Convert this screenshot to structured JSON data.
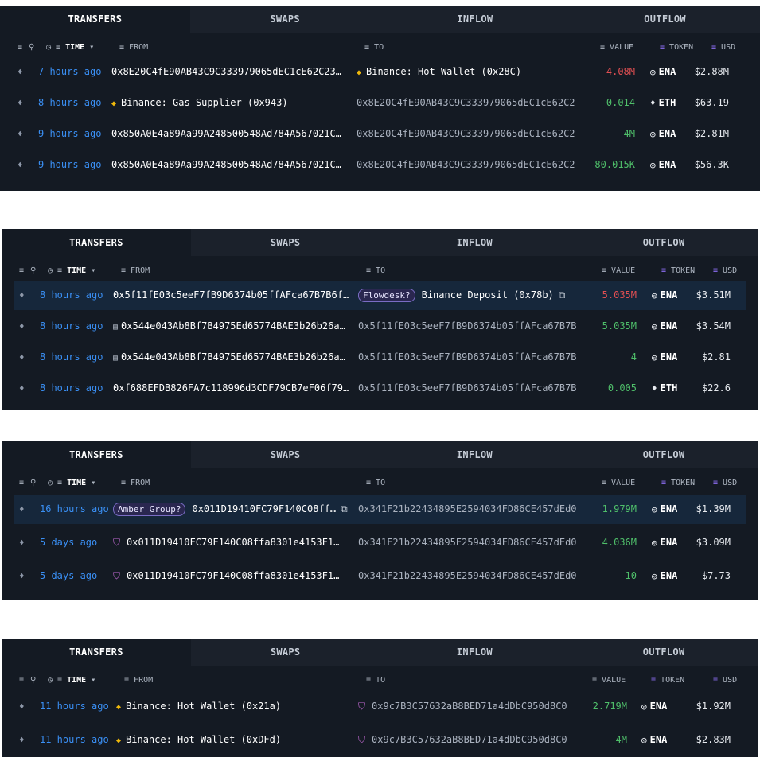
{
  "tabs": [
    "TRANSFERS",
    "SWAPS",
    "INFLOW",
    "OUTFLOW"
  ],
  "headers": {
    "time": "TIME",
    "from": "FROM",
    "to": "TO",
    "value": "VALUE",
    "token": "TOKEN",
    "usd": "USD"
  },
  "header_icons": [
    "filter-icon",
    "link-icon",
    "clock-icon",
    "chevron-down-icon"
  ],
  "panels": [
    {
      "rows": [
        {
          "time": "7 hours ago",
          "from": "0x8E20C4fE90AB43C9C333979065dEC1cE62C23…",
          "to": "Binance: Hot Wallet (0x28C)",
          "to_icon": "binance-icon",
          "value": "4.08M",
          "value_color": "red",
          "token": "ENA",
          "usd": "$2.88M"
        },
        {
          "time": "8 hours ago",
          "from": "Binance: Gas Supplier (0x943)",
          "from_icon": "binance-icon",
          "to": "0x8E20C4fE90AB43C9C333979065dEC1cE62C23…",
          "value": "0.014",
          "value_color": "green",
          "token": "ETH",
          "usd": "$63.19"
        },
        {
          "time": "9 hours ago",
          "from": "0x850A0E4a89Aa99A248500548Ad784A567021C…",
          "to": "0x8E20C4fE90AB43C9C333979065dEC1cE62C23…",
          "value": "4M",
          "value_color": "green",
          "token": "ENA",
          "usd": "$2.81M"
        },
        {
          "time": "9 hours ago",
          "from": "0x850A0E4a89Aa99A248500548Ad784A567021C…",
          "to": "0x8E20C4fE90AB43C9C333979065dEC1cE62C23…",
          "value": "80.015K",
          "value_color": "green",
          "token": "ENA",
          "usd": "$56.3K"
        }
      ]
    },
    {
      "rows": [
        {
          "time": "8 hours ago",
          "from": "0x5f11fE03c5eeF7fB9D6374b05ffAFca67B7B6f…",
          "to_tag": "Flowdesk?",
          "to": "Binance Deposit (0x78b)",
          "to_copy": true,
          "value": "5.035M",
          "value_color": "red",
          "token": "ENA",
          "usd": "$3.51M",
          "highlight": true
        },
        {
          "time": "8 hours ago",
          "from": "0x544e043Ab8Bf7B4975Ed65774BAE3b26b26a…",
          "from_icon": "document-icon",
          "to": "0x5f11fE03c5eeF7fB9D6374b05ffAFca67B7B6f…",
          "value": "5.035M",
          "value_color": "green",
          "token": "ENA",
          "usd": "$3.54M"
        },
        {
          "time": "8 hours ago",
          "from": "0x544e043Ab8Bf7B4975Ed65774BAE3b26b26a…",
          "from_icon": "document-icon",
          "to": "0x5f11fE03c5eeF7fB9D6374b05ffAFca67B7B6f…",
          "value": "4",
          "value_color": "green",
          "token": "ENA",
          "usd": "$2.81"
        },
        {
          "time": "8 hours ago",
          "from": "0xf688EFDB826FA7c118996d3CDF79CB7eF06f79…",
          "to": "0x5f11fE03c5eeF7fB9D6374b05ffAFca67B7B6f…",
          "value": "0.005",
          "value_color": "green",
          "token": "ETH",
          "usd": "$22.6"
        }
      ]
    },
    {
      "rows": [
        {
          "time": "16 hours ago",
          "from_tag": "Amber Group?",
          "from": "0x011D19410FC79F140C08ff…",
          "from_copy": true,
          "to": "0x341F21b22434895E2594034FD86CE457dEd0E…",
          "value": "1.979M",
          "value_color": "green",
          "token": "ENA",
          "usd": "$1.39M",
          "highlight": true
        },
        {
          "time": "5 days ago",
          "from": "0x011D19410FC79F140C08ffa8301e4153F1…",
          "from_icon": "safe-icon",
          "to": "0x341F21b22434895E2594034FD86CE457dEd0E…",
          "value": "4.036M",
          "value_color": "green",
          "token": "ENA",
          "usd": "$3.09M"
        },
        {
          "time": "5 days ago",
          "from": "0x011D19410FC79F140C08ffa8301e4153F1…",
          "from_icon": "safe-icon",
          "to": "0x341F21b22434895E2594034FD86CE457dEd0E…",
          "value": "10",
          "value_color": "green",
          "token": "ENA",
          "usd": "$7.73"
        }
      ]
    },
    {
      "rows": [
        {
          "time": "11 hours ago",
          "from": "Binance: Hot Wallet (0x21a)",
          "from_icon": "binance-icon",
          "to": "0x9c7B3C57632aB8BED71a4dDbC950d8C00…",
          "to_icon": "safe-icon",
          "value": "2.719M",
          "value_color": "green",
          "token": "ENA",
          "usd": "$1.92M"
        },
        {
          "time": "11 hours ago",
          "from": "Binance: Hot Wallet (0xDFd)",
          "from_icon": "binance-icon",
          "to": "0x9c7B3C57632aB8BED71a4dDbC950d8C00…",
          "to_icon": "safe-icon",
          "value": "4M",
          "value_color": "green",
          "token": "ENA",
          "usd": "$2.83M"
        }
      ]
    }
  ]
}
